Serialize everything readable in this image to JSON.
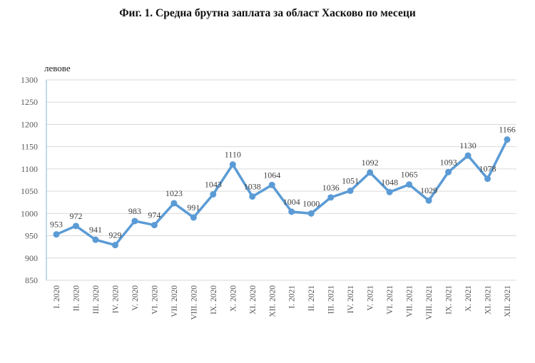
{
  "title": "Фиг. 1. Средна брутна заплата за област Хасково по месеци",
  "colors": {
    "line": "#5b9bd5",
    "grid": "#d9d9d9",
    "axis": "#9dc3e6"
  },
  "chart_data": {
    "type": "line",
    "title": "Фиг. 1. Средна брутна заплата за област Хасково по месеци",
    "xlabel": "",
    "ylabel": "левове",
    "ylim": [
      850,
      1300
    ],
    "yticks": [
      850,
      900,
      950,
      1000,
      1050,
      1100,
      1150,
      1200,
      1250,
      1300
    ],
    "grid": true,
    "legend": "none",
    "categories": [
      "I. 2020",
      "II. 2020",
      "III. 2020",
      "IV. 2020",
      "V. 2020",
      "VI. 2020",
      "VII. 2020",
      "VIII. 2020",
      "IX. 2020",
      "X. 2020",
      "XI. 2020",
      "XII. 2020",
      "I. 2021",
      "II. 2021",
      "III. 2021",
      "IV. 2021",
      "V. 2021",
      "VI. 2021",
      "VII. 2021",
      "VIII. 2021",
      "IX. 2021",
      "X. 2021",
      "XI. 2021",
      "XII. 2021"
    ],
    "series": [
      {
        "name": "Средна брутна заплата",
        "values": [
          953,
          972,
          941,
          929,
          983,
          974,
          1023,
          991,
          1043,
          1110,
          1038,
          1064,
          1004,
          1000,
          1036,
          1051,
          1092,
          1048,
          1065,
          1029,
          1093,
          1130,
          1078,
          1166
        ]
      }
    ]
  }
}
